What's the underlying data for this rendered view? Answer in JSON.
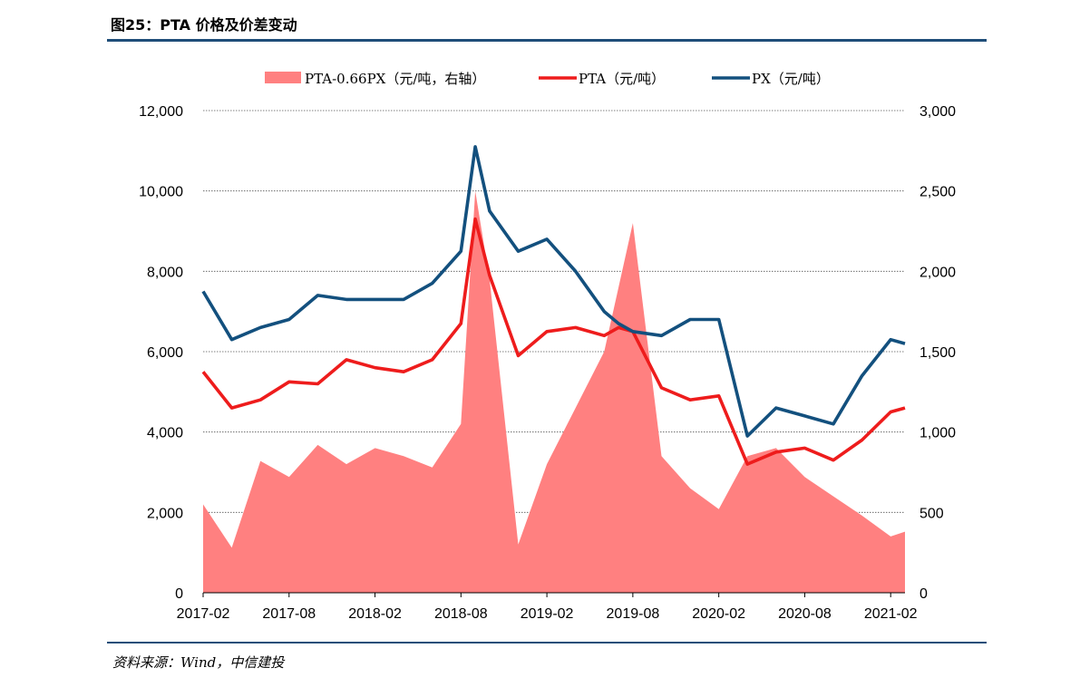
{
  "figure": {
    "title": "图25：PTA 价格及价差变动",
    "source": "资料来源：Wind，中信建投"
  },
  "colors": {
    "spread": "#ff8080",
    "pta": "#ee1c1c",
    "px": "#13507e",
    "rule": "#1f4e79",
    "grid": "#555555"
  },
  "chart_data": {
    "type": "line",
    "title": "",
    "xlabel": "",
    "ylabel": "",
    "x_tick_labels": [
      "2017-02",
      "2017-08",
      "2018-02",
      "2018-08",
      "2019-02",
      "2019-08",
      "2020-02",
      "2020-08",
      "2021-02"
    ],
    "y_left": {
      "lim": [
        0,
        12000
      ],
      "ticks": [
        0,
        2000,
        4000,
        6000,
        8000,
        10000,
        12000
      ],
      "tick_labels": [
        "0",
        "2,000",
        "4,000",
        "6,000",
        "8,000",
        "10,000",
        "12,000"
      ]
    },
    "y_right": {
      "lim": [
        0,
        3000
      ],
      "ticks": [
        0,
        500,
        1000,
        1500,
        2000,
        2500,
        3000
      ],
      "tick_labels": [
        "0",
        "500",
        "1,000",
        "1,500",
        "2,000",
        "2,500",
        "3,000"
      ]
    },
    "grid": "horizontal dotted",
    "legend_position": "top-center",
    "x": [
      "2017-02",
      "2017-04",
      "2017-06",
      "2017-08",
      "2017-10",
      "2017-12",
      "2018-02",
      "2018-04",
      "2018-06",
      "2018-08",
      "2018-09",
      "2018-10",
      "2018-12",
      "2019-02",
      "2019-04",
      "2019-06",
      "2019-07",
      "2019-08",
      "2019-10",
      "2019-12",
      "2020-02",
      "2020-04",
      "2020-06",
      "2020-08",
      "2020-10",
      "2020-12",
      "2021-02",
      "2021-03"
    ],
    "series": [
      {
        "name": "PTA-0.66PX（元/吨，右轴）",
        "type": "area",
        "axis": "right",
        "values": [
          550,
          280,
          820,
          720,
          920,
          800,
          900,
          850,
          780,
          1050,
          2500,
          1950,
          300,
          800,
          1150,
          1500,
          1900,
          2300,
          850,
          650,
          520,
          850,
          900,
          720,
          600,
          480,
          350,
          380
        ]
      },
      {
        "name": "PTA（元/吨）",
        "type": "line",
        "axis": "left",
        "values": [
          5500,
          4600,
          4800,
          5250,
          5200,
          5800,
          5600,
          5500,
          5800,
          6700,
          9300,
          7900,
          5900,
          6500,
          6600,
          6400,
          6600,
          6500,
          5100,
          4800,
          4900,
          3200,
          3500,
          3600,
          3300,
          3800,
          4500,
          4600
        ]
      },
      {
        "name": "PX（元/吨）",
        "type": "line",
        "axis": "left",
        "values": [
          7500,
          6300,
          6600,
          6800,
          7400,
          7300,
          7300,
          7300,
          7700,
          8500,
          11100,
          9500,
          8500,
          8800,
          8000,
          7000,
          6700,
          6500,
          6400,
          6800,
          6800,
          3900,
          4600,
          4400,
          4200,
          5400,
          6300,
          6200
        ]
      }
    ]
  }
}
